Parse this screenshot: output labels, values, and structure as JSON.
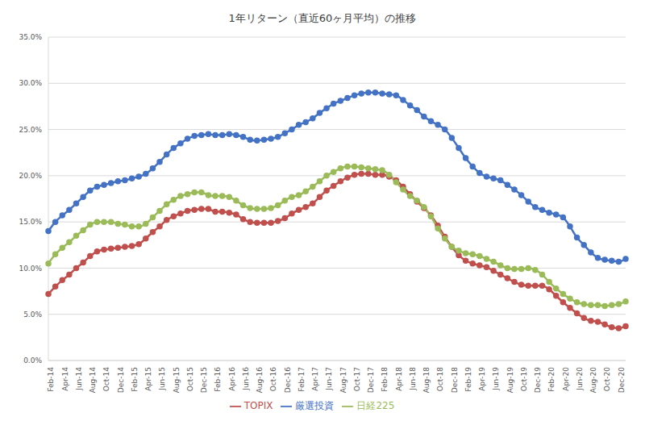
{
  "chart_data": {
    "type": "line",
    "title": "1年リターン（直近60ヶ月平均）の推移",
    "categories": [
      "Feb-14",
      null,
      "Apr-14",
      null,
      "Jun-14",
      null,
      "Aug-14",
      null,
      "Oct-14",
      null,
      "Dec-14",
      null,
      "Feb-15",
      null,
      "Apr-15",
      null,
      "Jun-15",
      null,
      "Aug-15",
      null,
      "Oct-15",
      null,
      "Dec-15",
      null,
      "Feb-16",
      null,
      "Apr-16",
      null,
      "Jun-16",
      null,
      "Aug-16",
      null,
      "Oct-16",
      null,
      "Dec-16",
      null,
      "Feb-17",
      null,
      "Apr-17",
      null,
      "Jun-17",
      null,
      "Aug-17",
      null,
      "Oct-17",
      null,
      "Dec-17",
      null,
      "Feb-18",
      null,
      "Apr-18",
      null,
      "Jun-18",
      null,
      "Aug-18",
      null,
      "Oct-18",
      null,
      "Dec-18",
      null,
      "Feb-19",
      null,
      "Apr-19",
      null,
      "Jun-19",
      null,
      "Aug-19",
      null,
      "Oct-19",
      null,
      "Dec-19",
      null,
      "Feb-20",
      null,
      "Apr-20",
      null,
      "Jun-20",
      null,
      "Aug-20",
      null,
      "Oct-20",
      null,
      "Dec-20",
      null
    ],
    "series": [
      {
        "name": "厳選投資",
        "color": "#4472C4",
        "marker": "circle",
        "line_style": "solid",
        "values": [
          14.0,
          15.0,
          15.7,
          16.3,
          17.0,
          17.7,
          18.4,
          18.8,
          19.0,
          19.2,
          19.4,
          19.5,
          19.7,
          19.9,
          20.2,
          20.8,
          21.5,
          22.3,
          23.0,
          23.5,
          24.0,
          24.3,
          24.4,
          24.5,
          24.4,
          24.4,
          24.5,
          24.4,
          24.2,
          23.9,
          23.8,
          23.9,
          24.0,
          24.2,
          24.6,
          25.0,
          25.5,
          25.8,
          26.2,
          26.8,
          27.3,
          27.8,
          28.1,
          28.4,
          28.7,
          28.9,
          29.0,
          29.0,
          28.9,
          28.8,
          28.7,
          28.2,
          27.6,
          27.1,
          26.4,
          25.9,
          25.5,
          25.0,
          24.1,
          23.0,
          21.9,
          21.0,
          20.3,
          19.9,
          19.7,
          19.5,
          19.0,
          18.5,
          17.9,
          17.2,
          16.6,
          16.3,
          16.0,
          15.8,
          15.5,
          14.5,
          13.3,
          12.5,
          11.7,
          11.1,
          10.9,
          10.8,
          10.7,
          11.0
        ]
      },
      {
        "name": "TOPIX",
        "color": "#C0504D",
        "marker": "circle",
        "line_style": "solid",
        "values": [
          7.2,
          8.0,
          8.7,
          9.3,
          10.0,
          10.6,
          11.3,
          11.8,
          12.0,
          12.1,
          12.2,
          12.3,
          12.4,
          12.6,
          13.2,
          13.9,
          14.5,
          15.2,
          15.6,
          15.9,
          16.2,
          16.3,
          16.4,
          16.4,
          16.1,
          16.1,
          16.0,
          15.8,
          15.3,
          15.0,
          14.9,
          14.9,
          14.9,
          15.1,
          15.4,
          15.9,
          16.3,
          16.6,
          17.0,
          17.7,
          18.4,
          18.9,
          19.4,
          19.8,
          20.1,
          20.2,
          20.2,
          20.1,
          20.1,
          19.9,
          19.5,
          18.8,
          18.0,
          17.2,
          16.5,
          15.7,
          14.6,
          13.4,
          12.3,
          11.4,
          10.8,
          10.5,
          10.3,
          10.1,
          9.7,
          9.3,
          8.9,
          8.5,
          8.2,
          8.1,
          8.1,
          8.1,
          7.7,
          7.0,
          6.3,
          5.7,
          5.1,
          4.6,
          4.3,
          4.2,
          3.9,
          3.6,
          3.5,
          3.7
        ]
      },
      {
        "name": "日経225",
        "color": "#9BBB59",
        "marker": "circle",
        "line_style": "solid",
        "values": [
          10.5,
          11.5,
          12.2,
          12.8,
          13.5,
          14.1,
          14.7,
          15.0,
          15.0,
          15.0,
          14.8,
          14.7,
          14.5,
          14.5,
          14.8,
          15.5,
          16.2,
          16.9,
          17.4,
          17.8,
          18.0,
          18.2,
          18.2,
          17.9,
          17.8,
          17.8,
          17.7,
          17.3,
          16.8,
          16.5,
          16.4,
          16.4,
          16.5,
          16.8,
          17.3,
          17.7,
          17.9,
          18.3,
          18.8,
          19.4,
          20.0,
          20.4,
          20.8,
          21.0,
          21.0,
          20.9,
          20.8,
          20.7,
          20.6,
          20.1,
          19.3,
          18.5,
          17.8,
          17.3,
          16.6,
          15.6,
          14.3,
          13.2,
          12.3,
          11.9,
          11.6,
          11.5,
          11.3,
          11.0,
          10.7,
          10.3,
          10.0,
          9.9,
          9.9,
          10.0,
          9.8,
          9.3,
          8.5,
          7.8,
          7.2,
          6.7,
          6.3,
          6.1,
          6.0,
          6.0,
          5.9,
          6.0,
          6.1,
          6.4
        ]
      }
    ],
    "ylim": [
      0,
      35
    ],
    "yticks": [
      {
        "value": 0,
        "label": "0.0%"
      },
      {
        "value": 5,
        "label": "5.0%"
      },
      {
        "value": 10,
        "label": "10.0%"
      },
      {
        "value": 15,
        "label": "15.0%"
      },
      {
        "value": 20,
        "label": "20.0%"
      },
      {
        "value": 25,
        "label": "25.0%"
      },
      {
        "value": 30,
        "label": "30.0%"
      },
      {
        "value": 35,
        "label": "35.0%"
      }
    ],
    "grid": true,
    "legend": "bottom"
  }
}
